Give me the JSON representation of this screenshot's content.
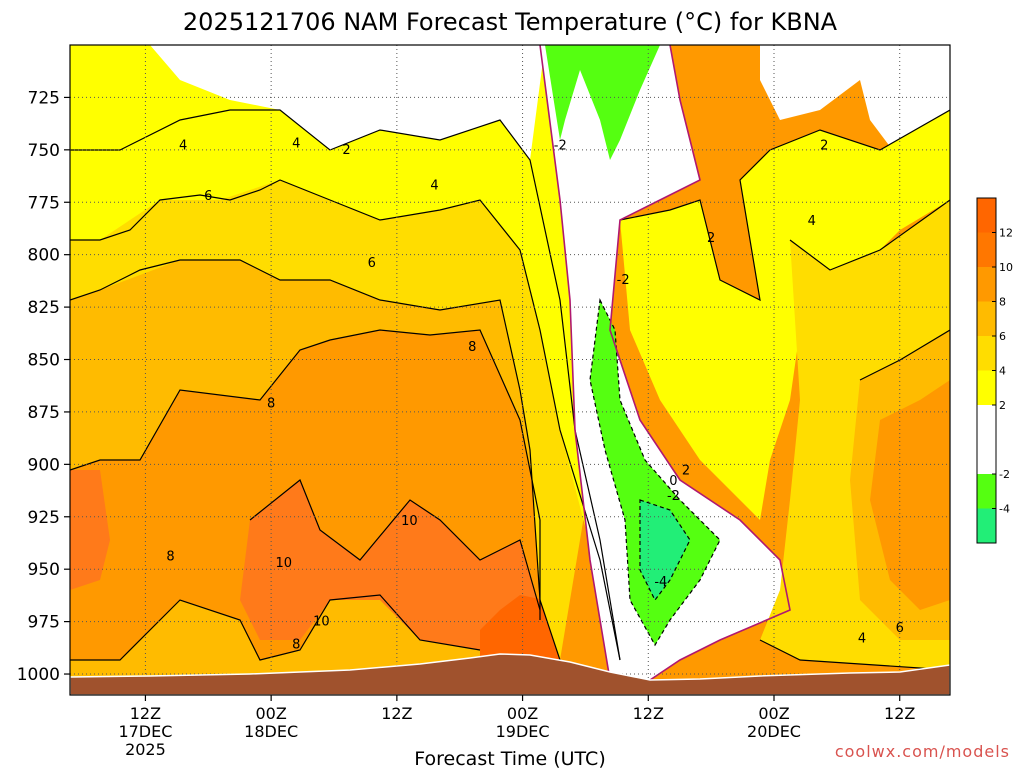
{
  "chart_data": {
    "type": "heatmap",
    "title": "2025121706 NAM Forecast Temperature (°C) for KBNA",
    "xlabel": "Forecast Time (UTC)",
    "ylabel": "",
    "credit": "coolwx.com/models",
    "y_axis": {
      "reversed": true,
      "range": [
        1010,
        700
      ],
      "ticks": [
        725,
        750,
        775,
        800,
        825,
        850,
        875,
        900,
        925,
        950,
        975,
        1000
      ]
    },
    "x_axis": {
      "range_hours": [
        6,
        76
      ],
      "ticks": [
        {
          "hour": 12,
          "lines": [
            "12Z",
            "17DEC",
            "2025"
          ]
        },
        {
          "hour": 22,
          "lines": [
            "00Z",
            "18DEC"
          ]
        },
        {
          "hour": 32,
          "lines": [
            "12Z"
          ]
        },
        {
          "hour": 42,
          "lines": [
            "00Z",
            "19DEC"
          ]
        },
        {
          "hour": 52,
          "lines": [
            "12Z"
          ]
        },
        {
          "hour": 62,
          "lines": [
            "00Z",
            "20DEC"
          ]
        },
        {
          "hour": 72,
          "lines": [
            "12Z"
          ]
        }
      ]
    },
    "grid": true,
    "colorbar": {
      "placement": "right",
      "bins": [
        {
          "from": -6,
          "to": -4,
          "color": "#22ee77"
        },
        {
          "from": -4,
          "to": -2,
          "color": "#55ff11"
        },
        {
          "from": -2,
          "to": 2,
          "color": "#ffffff"
        },
        {
          "from": 2,
          "to": 4,
          "color": "#ffff00"
        },
        {
          "from": 4,
          "to": 6,
          "color": "#ffdd00"
        },
        {
          "from": 6,
          "to": 8,
          "color": "#ffbb00"
        },
        {
          "from": 8,
          "to": 10,
          "color": "#ff9900"
        },
        {
          "from": 10,
          "to": 12,
          "color": "#ff7700"
        },
        {
          "from": 12,
          "to": 14,
          "color": "#ff6600"
        }
      ],
      "labels": [
        "12",
        "10",
        "8",
        "6",
        "4",
        "2",
        "-2",
        "-4"
      ]
    },
    "contour_labels": [
      {
        "text": "4",
        "hour": 15,
        "pressure": 748
      },
      {
        "text": "4",
        "hour": 24,
        "pressure": 747
      },
      {
        "text": "2",
        "hour": 28,
        "pressure": 750
      },
      {
        "text": "4",
        "hour": 35,
        "pressure": 767
      },
      {
        "text": "6",
        "hour": 17,
        "pressure": 772
      },
      {
        "text": "6",
        "hour": 30,
        "pressure": 804
      },
      {
        "text": "8",
        "hour": 38,
        "pressure": 844
      },
      {
        "text": "8",
        "hour": 22,
        "pressure": 871
      },
      {
        "text": "-2",
        "hour": 45,
        "pressure": 748
      },
      {
        "text": "-2",
        "hour": 50,
        "pressure": 812
      },
      {
        "text": "2",
        "hour": 57,
        "pressure": 792
      },
      {
        "text": "4",
        "hour": 65,
        "pressure": 784
      },
      {
        "text": "2",
        "hour": 66,
        "pressure": 748
      },
      {
        "text": "2",
        "hour": 55,
        "pressure": 903
      },
      {
        "text": "0",
        "hour": 54,
        "pressure": 908
      },
      {
        "text": "-2",
        "hour": 54,
        "pressure": 915
      },
      {
        "text": "-4",
        "hour": 53,
        "pressure": 956
      },
      {
        "text": "10",
        "hour": 33,
        "pressure": 927
      },
      {
        "text": "10",
        "hour": 23,
        "pressure": 947
      },
      {
        "text": "8",
        "hour": 14,
        "pressure": 944
      },
      {
        "text": "10",
        "hour": 26,
        "pressure": 975
      },
      {
        "text": "8",
        "hour": 24,
        "pressure": 986
      },
      {
        "text": "4",
        "hour": 69,
        "pressure": 983
      },
      {
        "text": "6",
        "hour": 72,
        "pressure": 978
      }
    ]
  }
}
